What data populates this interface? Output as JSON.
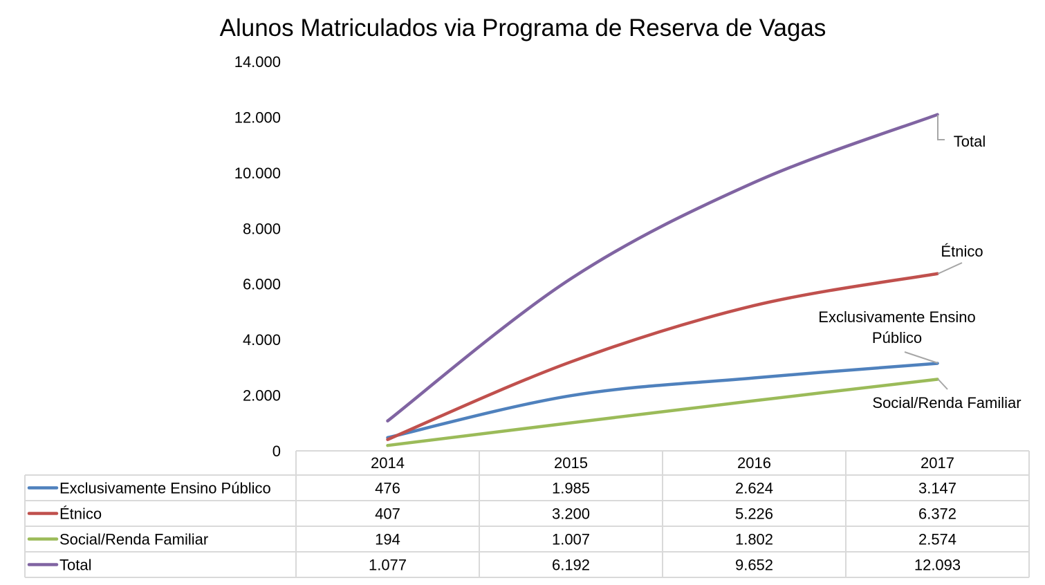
{
  "chart_data": {
    "type": "line",
    "title": "Alunos Matriculados via Programa de Reserva de Vagas",
    "xlabel": "",
    "ylabel": "",
    "categories": [
      "2014",
      "2015",
      "2016",
      "2017"
    ],
    "ylim": [
      0,
      14000
    ],
    "yticks": [
      0,
      2000,
      4000,
      6000,
      8000,
      10000,
      12000,
      14000
    ],
    "ytick_labels": [
      "0",
      "2.000",
      "4.000",
      "6.000",
      "8.000",
      "10.000",
      "12.000",
      "14.000"
    ],
    "grid": false,
    "legend": "data-table-below",
    "series": [
      {
        "name": "Exclusivamente Ensino Público",
        "color": "#4f81bd",
        "values": [
          476,
          1985,
          2624,
          3147
        ],
        "labels": [
          "476",
          "1.985",
          "2.624",
          "3.147"
        ],
        "end_label_lines": [
          "Exclusivamente Ensino",
          "Público"
        ]
      },
      {
        "name": "Étnico",
        "color": "#c0504d",
        "values": [
          407,
          3200,
          5226,
          6372
        ],
        "labels": [
          "407",
          "3.200",
          "5.226",
          "6.372"
        ],
        "end_label_lines": [
          "Étnico"
        ]
      },
      {
        "name": "Social/Renda Familiar",
        "color": "#9bbb59",
        "values": [
          194,
          1007,
          1802,
          2574
        ],
        "labels": [
          "194",
          "1.007",
          "1.802",
          "2.574"
        ],
        "end_label_lines": [
          "Social/Renda Familiar"
        ]
      },
      {
        "name": "Total",
        "color": "#8064a2",
        "values": [
          1077,
          6192,
          9652,
          12093
        ],
        "labels": [
          "1.077",
          "6.192",
          "9.652",
          "12.093"
        ],
        "end_label_lines": [
          "Total"
        ]
      }
    ]
  }
}
